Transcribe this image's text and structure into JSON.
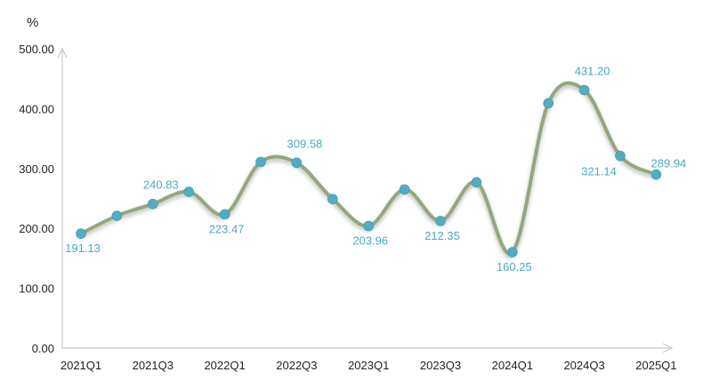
{
  "chart_data": {
    "type": "line",
    "ylabel": "%",
    "ylim": [
      0,
      500
    ],
    "yticks": [
      "0.00",
      "100.00",
      "200.00",
      "300.00",
      "400.00",
      "500.00"
    ],
    "x": [
      "2021Q1",
      "2021Q2",
      "2021Q3",
      "2021Q4",
      "2022Q1",
      "2022Q2",
      "2022Q3",
      "2022Q4",
      "2023Q1",
      "2023Q2",
      "2023Q3",
      "2023Q4",
      "2024Q1",
      "2024Q2",
      "2024Q3",
      "2024Q4",
      "2025Q1"
    ],
    "xtick_labels": [
      "2021Q1",
      "2021Q3",
      "2022Q1",
      "2022Q3",
      "2023Q1",
      "2023Q3",
      "2024Q1",
      "2024Q3",
      "2025Q1"
    ],
    "series": [
      {
        "values": [
          191.13,
          221,
          240.83,
          261,
          223.47,
          311,
          309.58,
          249,
          203.96,
          265,
          212.35,
          277,
          160.25,
          409,
          431.2,
          321.14,
          289.94
        ]
      }
    ],
    "data_labels": [
      {
        "index": 0,
        "text": "191.13",
        "pos": "below"
      },
      {
        "index": 2,
        "text": "240.83",
        "pos": "above"
      },
      {
        "index": 4,
        "text": "223.47",
        "pos": "below"
      },
      {
        "index": 6,
        "text": "309.58",
        "pos": "above"
      },
      {
        "index": 8,
        "text": "203.96",
        "pos": "below"
      },
      {
        "index": 10,
        "text": "212.35",
        "pos": "below"
      },
      {
        "index": 12,
        "text": "160.25",
        "pos": "below"
      },
      {
        "index": 14,
        "text": "431.20",
        "pos": "above"
      },
      {
        "index": 15,
        "text": "321.14",
        "pos": "below-left"
      },
      {
        "index": 16,
        "text": "289.94",
        "pos": "above-right"
      }
    ],
    "grid": false,
    "colors": {
      "line": "#93a77e",
      "marker": "#52aebf",
      "label": "#4aa9bf",
      "axis": "#c8c8c8"
    }
  }
}
